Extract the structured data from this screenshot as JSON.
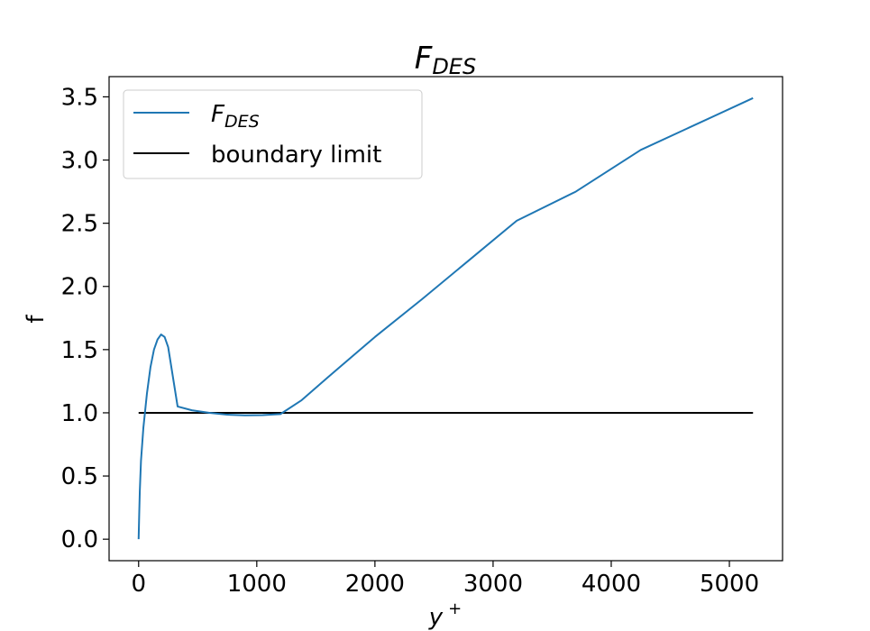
{
  "chart_data": {
    "type": "line",
    "title": {
      "main": "F",
      "sub": "DES"
    },
    "xlabel": {
      "main": "y",
      "sup": "+"
    },
    "ylabel": "f",
    "xlim": [
      -250,
      5450
    ],
    "ylim": [
      -0.17,
      3.66
    ],
    "xticks": [
      0,
      1000,
      2000,
      3000,
      4000,
      5000
    ],
    "xtick_labels": [
      "0",
      "1000",
      "2000",
      "3000",
      "4000",
      "5000"
    ],
    "yticks": [
      0.0,
      0.5,
      1.0,
      1.5,
      2.0,
      2.5,
      3.0,
      3.5
    ],
    "ytick_labels": [
      "0.0",
      "0.5",
      "1.0",
      "1.5",
      "2.0",
      "2.5",
      "3.0",
      "3.5"
    ],
    "grid": false,
    "legend_position": "upper-left",
    "series": [
      {
        "name": {
          "main": "F",
          "sub": "DES"
        },
        "color": "#1f77b4",
        "x": [
          0,
          5,
          10,
          20,
          40,
          70,
          100,
          130,
          160,
          190,
          220,
          250,
          330,
          450,
          600,
          750,
          900,
          1050,
          1200,
          1380,
          1600,
          2000,
          2400,
          2800,
          3200,
          3700,
          4250,
          5200
        ],
        "y": [
          0.0,
          0.2,
          0.38,
          0.62,
          0.88,
          1.15,
          1.36,
          1.5,
          1.58,
          1.62,
          1.6,
          1.52,
          1.05,
          1.02,
          1.0,
          0.985,
          0.98,
          0.982,
          0.99,
          1.1,
          1.28,
          1.6,
          1.9,
          2.21,
          2.52,
          2.75,
          3.08,
          3.49
        ]
      },
      {
        "name": "boundary limit",
        "color": "#000000",
        "x": [
          0,
          5200
        ],
        "y": [
          1.0,
          1.0
        ]
      }
    ]
  }
}
